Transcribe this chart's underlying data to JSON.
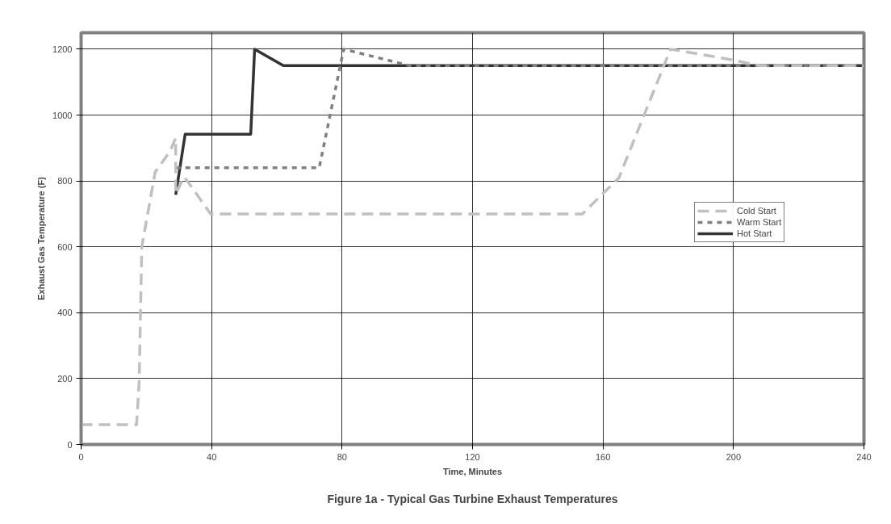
{
  "chart_data": {
    "type": "line",
    "title": "Figure 1a - Typical Gas Turbine Exhaust Temperatures",
    "xlabel": "Time, Minutes",
    "ylabel": "Exhaust Gas Temperature (F)",
    "xlim": [
      0,
      240
    ],
    "xticks": [
      0,
      40,
      80,
      120,
      160,
      200,
      240
    ],
    "ylim": [
      0,
      1250
    ],
    "yticks": [
      0,
      200,
      400,
      600,
      800,
      1000,
      1200
    ],
    "grid": true,
    "legend": "right",
    "series": [
      {
        "name": "Cold Start",
        "color": "#c0c0c0",
        "line_style": "dashed",
        "x": [
          0,
          17,
          17.8,
          18.6,
          22.7,
          27.2,
          29,
          29,
          31.6,
          39.7,
          153.7,
          164.9,
          180.7,
          199.4,
          208,
          240
        ],
        "values": [
          60,
          60,
          190,
          600,
          827,
          889,
          930,
          760,
          813,
          700,
          700,
          810,
          1200,
          1168,
          1150,
          1150
        ]
      },
      {
        "name": "Warm Start",
        "color": "#808080",
        "line_style": "dotted",
        "x": [
          29,
          73,
          80.5,
          100.7,
          240
        ],
        "values": [
          840,
          840,
          1200,
          1150,
          1150
        ]
      },
      {
        "name": "Hot Start",
        "color": "#333333",
        "line_style": "solid",
        "x": [
          29,
          31.9,
          52,
          53.2,
          62,
          240
        ],
        "values": [
          758,
          942,
          942,
          1200,
          1150,
          1150
        ]
      }
    ]
  }
}
